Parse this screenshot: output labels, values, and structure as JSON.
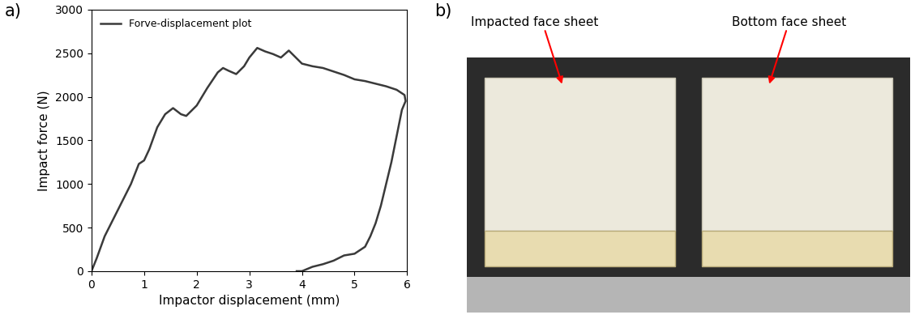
{
  "chart_data": {
    "type": "line",
    "xlabel": "Impactor displacement (mm)",
    "ylabel": "Impact force (N)",
    "xlim": [
      0,
      6
    ],
    "xticks": [
      0,
      1,
      2,
      3,
      4,
      5,
      6
    ],
    "ylim": [
      0,
      3000
    ],
    "yticks": [
      0,
      500,
      1000,
      1500,
      2000,
      2500,
      3000
    ],
    "legend": "upper left",
    "series": [
      {
        "name": "Forve-displacement plot",
        "color": "#3a3a3a",
        "line_style": "solid",
        "x": [
          0,
          0.1,
          0.25,
          0.5,
          0.75,
          0.9,
          1.0,
          1.1,
          1.25,
          1.4,
          1.55,
          1.7,
          1.8,
          2.0,
          2.2,
          2.4,
          2.5,
          2.6,
          2.75,
          2.9,
          3.0,
          3.15,
          3.3,
          3.45,
          3.6,
          3.75,
          3.85,
          4.0,
          4.2,
          4.4,
          4.6,
          4.8,
          5.0,
          5.2,
          5.4,
          5.6,
          5.8,
          5.95,
          5.97,
          5.9,
          5.8,
          5.7,
          5.6,
          5.5,
          5.4,
          5.3,
          5.2,
          5.0,
          4.8,
          4.6,
          4.4,
          4.2,
          4.0,
          3.9
        ],
        "values": [
          0,
          150,
          400,
          700,
          1000,
          1230,
          1270,
          1400,
          1650,
          1800,
          1870,
          1800,
          1780,
          1900,
          2100,
          2280,
          2330,
          2300,
          2260,
          2350,
          2450,
          2560,
          2520,
          2490,
          2450,
          2530,
          2470,
          2380,
          2350,
          2330,
          2290,
          2250,
          2200,
          2180,
          2150,
          2120,
          2080,
          2020,
          1950,
          1850,
          1550,
          1250,
          1000,
          750,
          550,
          400,
          280,
          200,
          180,
          120,
          80,
          50,
          0,
          0
        ]
      }
    ]
  },
  "panel_labels": [
    "a)",
    "b)"
  ],
  "photo": {
    "labels": [
      "Impacted face sheet",
      "Bottom face sheet"
    ]
  }
}
